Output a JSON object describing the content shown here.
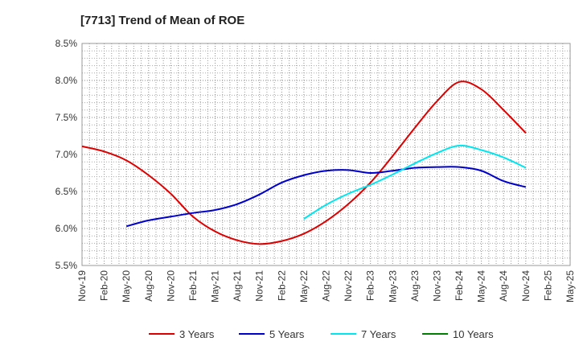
{
  "chart_data": {
    "type": "line",
    "title": "[7713]  Trend of Mean of ROE",
    "xlabel": "",
    "ylabel": "",
    "categories": [
      "Nov-19",
      "Feb-20",
      "May-20",
      "Aug-20",
      "Nov-20",
      "Feb-21",
      "May-21",
      "Aug-21",
      "Nov-21",
      "Feb-22",
      "May-22",
      "Aug-22",
      "Nov-22",
      "Feb-23",
      "May-23",
      "Aug-23",
      "Nov-23",
      "Feb-24",
      "May-24",
      "Aug-24",
      "Nov-24",
      "Feb-25",
      "May-25"
    ],
    "ylim": [
      5.5,
      8.5
    ],
    "yticks": [
      5.5,
      6.0,
      6.5,
      7.0,
      7.5,
      8.0,
      8.5
    ],
    "ytick_labels": [
      "5.5%",
      "6.0%",
      "6.5%",
      "7.0%",
      "7.5%",
      "8.0%",
      "8.5%"
    ],
    "grid": true,
    "legend_position": "bottom",
    "series": [
      {
        "name": "3 Years",
        "color": "#dd0000",
        "values": [
          7.11,
          7.04,
          6.92,
          6.72,
          6.47,
          6.16,
          5.96,
          5.84,
          5.79,
          5.83,
          5.93,
          6.1,
          6.33,
          6.62,
          6.98,
          7.36,
          7.72,
          7.98,
          7.88,
          7.6,
          7.29,
          null,
          null
        ]
      },
      {
        "name": "5 Years",
        "color": "#0000cc",
        "values": [
          null,
          null,
          6.03,
          6.11,
          6.16,
          6.21,
          6.25,
          6.33,
          6.46,
          6.62,
          6.72,
          6.78,
          6.79,
          6.75,
          6.78,
          6.82,
          6.83,
          6.83,
          6.78,
          6.64,
          6.56,
          null,
          null
        ]
      },
      {
        "name": "7 Years",
        "color": "#00e5ee",
        "values": [
          null,
          null,
          null,
          null,
          null,
          null,
          null,
          null,
          null,
          null,
          6.13,
          6.32,
          6.47,
          6.59,
          6.73,
          6.88,
          7.02,
          7.12,
          7.06,
          6.96,
          6.82,
          null,
          null
        ]
      },
      {
        "name": "10 Years",
        "color": "#008000",
        "values": [
          null,
          null,
          null,
          null,
          null,
          null,
          null,
          null,
          null,
          null,
          null,
          null,
          null,
          null,
          null,
          null,
          null,
          null,
          null,
          null,
          null,
          null,
          null
        ]
      }
    ]
  }
}
